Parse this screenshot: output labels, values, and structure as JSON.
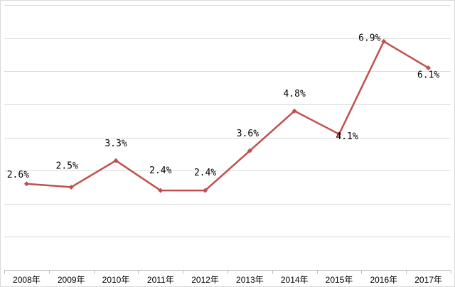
{
  "chart_data": {
    "type": "line",
    "title": "",
    "xlabel": "",
    "ylabel": "",
    "categories": [
      "2008年",
      "2009年",
      "2010年",
      "2011年",
      "2012年",
      "2013年",
      "2014年",
      "2015年",
      "2016年",
      "2017年"
    ],
    "series": [
      {
        "values": [
          2.6,
          2.5,
          3.3,
          2.4,
          2.4,
          3.6,
          4.8,
          4.1,
          6.9,
          6.1
        ],
        "labels": [
          "2.6%",
          "2.5%",
          "3.3%",
          "2.4%",
          "2.4%",
          "3.6%",
          "4.8%",
          "4.1%",
          "6.9%",
          "6.1%"
        ]
      }
    ],
    "ylim": [
      0,
      8
    ],
    "grid": true,
    "legend": "none",
    "colors": {
      "line": "#c0504d",
      "marker": "#c0504d",
      "grid": "#d9d9d9",
      "axis": "#bfbfbf"
    }
  }
}
